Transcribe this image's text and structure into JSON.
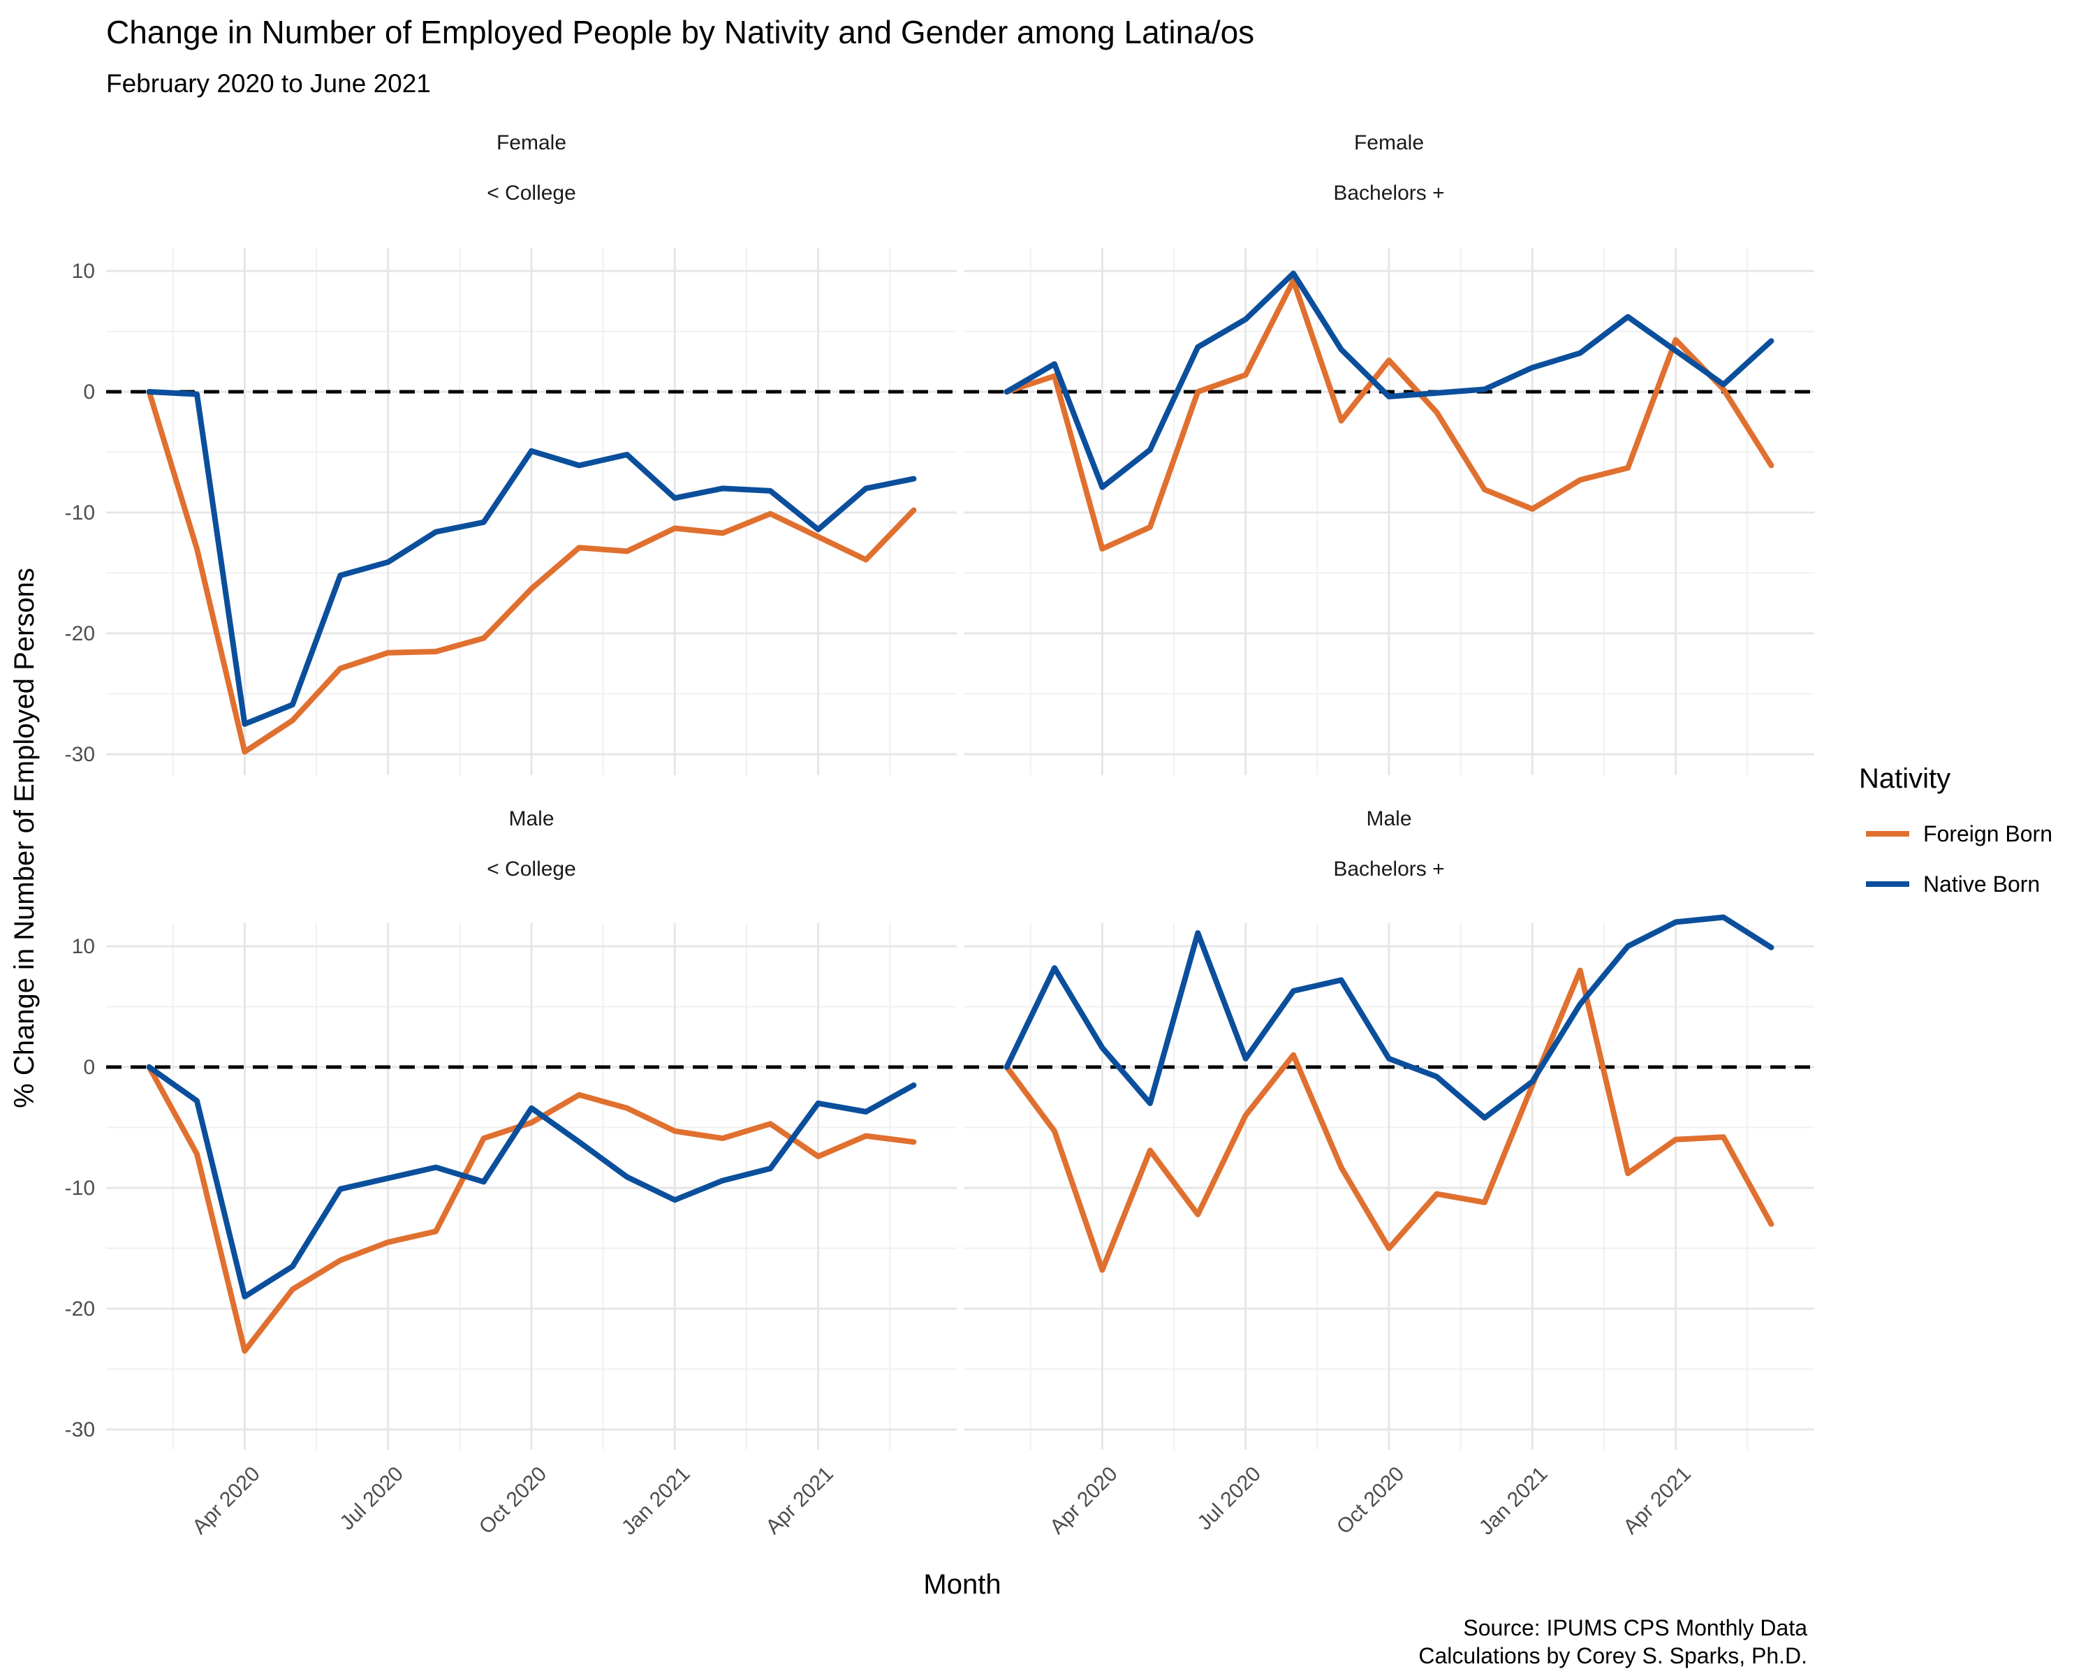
{
  "chart_data": {
    "type": "line",
    "title": "Change in Number of Employed People by Nativity and Gender among Latina/os",
    "subtitle": "February 2020 to June 2021",
    "xlabel": "Month",
    "ylabel": "% Change in Number of Employed Persons",
    "caption": [
      "Source: IPUMS CPS Monthly Data",
      "Calculations by Corey S. Sparks, Ph.D."
    ],
    "x": [
      "2020-02",
      "2020-03",
      "2020-04",
      "2020-05",
      "2020-06",
      "2020-07",
      "2020-08",
      "2020-09",
      "2020-10",
      "2020-11",
      "2020-12",
      "2021-01",
      "2021-02",
      "2021-03",
      "2021-04",
      "2021-05",
      "2021-06"
    ],
    "x_ticks": [
      "Apr 2020",
      "Jul 2020",
      "Oct 2020",
      "Jan 2021",
      "Apr 2021"
    ],
    "x_tick_values": [
      "2020-04",
      "2020-07",
      "2020-10",
      "2021-01",
      "2021-04"
    ],
    "ylim": [
      -31,
      15
    ],
    "y_ticks": [
      10,
      0,
      -10,
      -20,
      -30
    ],
    "reference_line": 0,
    "grid": true,
    "legend": {
      "title": "Nativity",
      "position": "right",
      "entries": [
        {
          "name": "Foreign Born",
          "color": "#E0702F"
        },
        {
          "name": "Native Born",
          "color": "#0B4F9C"
        }
      ]
    },
    "panels": [
      {
        "strip_top": "Female",
        "strip_bottom": "< College",
        "series": [
          {
            "name": "Foreign Born",
            "values": [
              0,
              -13,
              -29.8,
              -27.2,
              -22.9,
              -21.6,
              -21.5,
              -20.4,
              -16.3,
              -12.9,
              -13.2,
              -11.3,
              -11.7,
              -10.1,
              -12,
              -13.9,
              -9.8
            ]
          },
          {
            "name": "Native Born",
            "values": [
              0,
              -0.2,
              -27.5,
              -25.9,
              -15.2,
              -14.1,
              -11.6,
              -10.8,
              -4.9,
              -6.1,
              -5.2,
              -8.8,
              -8,
              -8.2,
              -11.4,
              -8,
              -7.2
            ]
          }
        ]
      },
      {
        "strip_top": "Female",
        "strip_bottom": "Bachelors +",
        "series": [
          {
            "name": "Foreign Born",
            "values": [
              0,
              1.3,
              -13,
              -11.2,
              0,
              1.4,
              9.2,
              -2.4,
              2.6,
              -1.7,
              -8.1,
              -9.7,
              -7.3,
              -6.3,
              4.3,
              0.2,
              -6.1
            ]
          },
          {
            "name": "Native Born",
            "values": [
              0,
              2.3,
              -7.9,
              -4.8,
              3.7,
              6,
              9.8,
              3.5,
              -0.4,
              -0.1,
              0.2,
              2,
              3.2,
              6.2,
              3.4,
              0.6,
              4.2
            ]
          }
        ]
      },
      {
        "strip_top": "Male",
        "strip_bottom": "< College",
        "series": [
          {
            "name": "Foreign Born",
            "values": [
              0,
              -7.2,
              -23.5,
              -18.4,
              -16,
              -14.5,
              -13.6,
              -5.9,
              -4.6,
              -2.3,
              -3.4,
              -5.3,
              -5.9,
              -4.7,
              -7.4,
              -5.7,
              -6.2
            ]
          },
          {
            "name": "Native Born",
            "values": [
              0,
              -2.8,
              -19,
              -16.5,
              -10.1,
              -9.2,
              -8.3,
              -9.5,
              -3.4,
              -6.2,
              -9.1,
              -11,
              -9.4,
              -8.4,
              -3,
              -3.7,
              -1.5
            ]
          }
        ]
      },
      {
        "strip_top": "Male",
        "strip_bottom": "Bachelors +",
        "series": [
          {
            "name": "Foreign Born",
            "values": [
              0,
              -5.3,
              -16.8,
              -6.9,
              -12.2,
              -4,
              1,
              -8.3,
              -15,
              -10.5,
              -11.2,
              -1.5,
              8,
              -8.8,
              -6,
              -5.8,
              -13
            ]
          },
          {
            "name": "Native Born",
            "values": [
              0,
              8.2,
              1.6,
              -3,
              11.1,
              0.7,
              6.3,
              7.2,
              0.7,
              -0.8,
              -4.2,
              -1.2,
              5.2,
              10,
              12,
              12.4,
              9.9
            ]
          }
        ]
      }
    ]
  }
}
